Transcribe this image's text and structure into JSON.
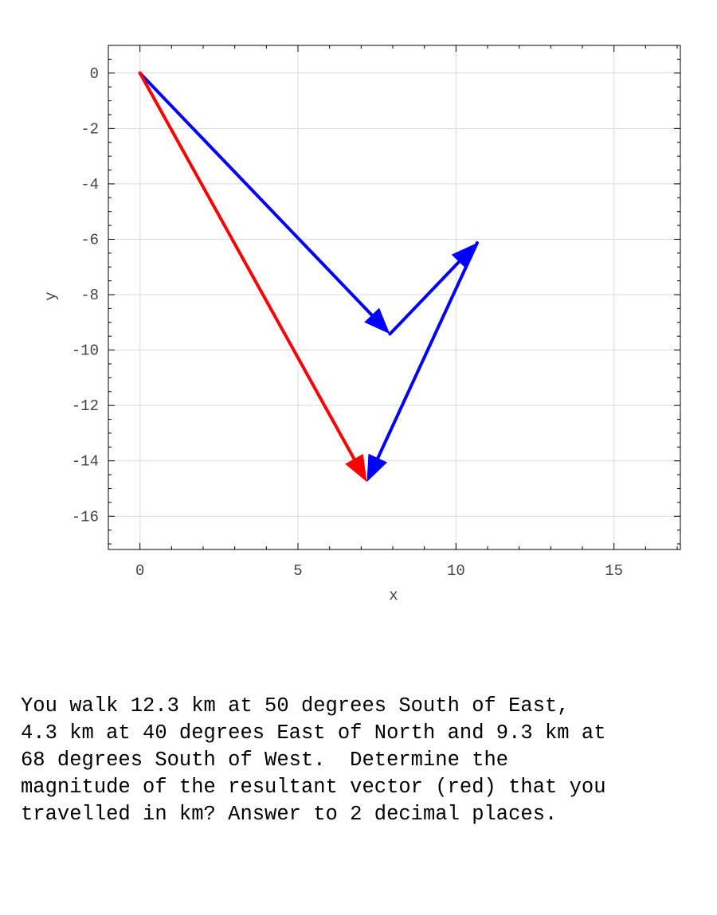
{
  "chart_data": {
    "type": "vector",
    "xlabel": "x",
    "ylabel": "y",
    "xlim": [
      -1,
      17.1
    ],
    "ylim": [
      -17.2,
      1
    ],
    "xticks": [
      "0",
      "5",
      "10",
      "15"
    ],
    "yticks": [
      "0",
      "-2",
      "-4",
      "-6",
      "-8",
      "-10",
      "-12",
      "-14",
      "-16"
    ],
    "grid": true,
    "vectors": [
      {
        "from": [
          0,
          0
        ],
        "to": [
          7.91,
          -9.42
        ],
        "color": "#0000ff"
      },
      {
        "from": [
          7.91,
          -9.42
        ],
        "to": [
          10.67,
          -6.13
        ],
        "color": "#0000ff"
      },
      {
        "from": [
          10.67,
          -6.13
        ],
        "to": [
          7.18,
          -14.76
        ],
        "color": "#0000ff"
      },
      {
        "from": [
          0,
          0
        ],
        "to": [
          7.18,
          -14.76
        ],
        "color": "#ff0000"
      }
    ]
  },
  "question": {
    "lines": [
      "You walk 12.3 km at 50 degrees South of East,",
      "4.3 km at 40 degrees East of North and 9.3 km at",
      "68 degrees South of West.  Determine the",
      "magnitude of the resultant vector (red) that you",
      "travelled in km? Answer to 2 decimal places."
    ]
  }
}
